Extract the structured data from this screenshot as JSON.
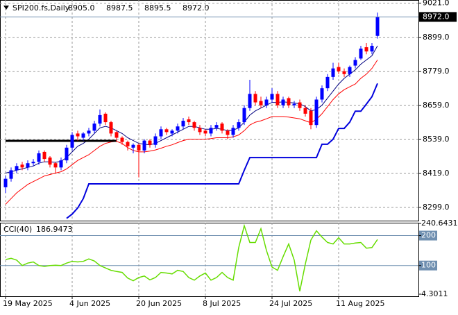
{
  "chart_data": [
    {
      "type": "candlestick",
      "title": "SPI200.fs,Daily",
      "header_values": [
        "8905.0",
        "8987.5",
        "8895.5",
        "8972.0"
      ],
      "categories": [
        "19 May 2025",
        null,
        null,
        null,
        null,
        null,
        null,
        null,
        null,
        null,
        null,
        null,
        "4 Jun 2025",
        null,
        null,
        null,
        null,
        null,
        null,
        null,
        null,
        null,
        null,
        null,
        "20 Jun 2025",
        null,
        null,
        null,
        null,
        null,
        null,
        null,
        null,
        null,
        null,
        null,
        "8 Jul 2025",
        null,
        null,
        null,
        null,
        null,
        null,
        null,
        null,
        null,
        null,
        null,
        "24 Jul 2025",
        null,
        null,
        null,
        null,
        null,
        null,
        null,
        null,
        null,
        null,
        null,
        "11 Aug 2025",
        null,
        null,
        null,
        null,
        null,
        null,
        null
      ],
      "open": [
        8370,
        8400,
        8430,
        8450,
        8440,
        8455,
        8460,
        8495,
        8475,
        8455,
        8440,
        8465,
        8510,
        8560,
        8545,
        8560,
        8570,
        8595,
        8630,
        8600,
        8565,
        8545,
        8530,
        8510,
        8520,
        8500,
        8535,
        8520,
        8550,
        8575,
        8560,
        8570,
        8585,
        8610,
        8600,
        8580,
        8570,
        8560,
        8580,
        8595,
        8570,
        8555,
        8580,
        8600,
        8650,
        8700,
        8675,
        8660,
        8680,
        8700,
        8660,
        8685,
        8660,
        8670,
        8650,
        8640,
        8590,
        8680,
        8720,
        8760,
        8795,
        8780,
        8770,
        8800,
        8825,
        8865,
        8850,
        8905
      ],
      "high": [
        8410,
        8440,
        8455,
        8460,
        8465,
        8470,
        8500,
        8500,
        8480,
        8460,
        8475,
        8520,
        8565,
        8570,
        8565,
        8580,
        8605,
        8645,
        8635,
        8605,
        8570,
        8550,
        8535,
        8525,
        8525,
        8540,
        8540,
        8560,
        8585,
        8580,
        8575,
        8595,
        8615,
        8620,
        8605,
        8590,
        8575,
        8590,
        8600,
        8600,
        8575,
        8590,
        8610,
        8660,
        8750,
        8710,
        8690,
        8690,
        8720,
        8710,
        8690,
        8690,
        8675,
        8680,
        8660,
        8650,
        8690,
        8730,
        8770,
        8810,
        8810,
        8790,
        8800,
        8830,
        8870,
        8880,
        8880,
        8987.5
      ],
      "low": [
        8350,
        8390,
        8420,
        8430,
        8430,
        8445,
        8450,
        8460,
        8440,
        8420,
        8430,
        8455,
        8500,
        8535,
        8535,
        8550,
        8560,
        8585,
        8590,
        8550,
        8530,
        8520,
        8500,
        8490,
        8405,
        8490,
        8510,
        8510,
        8540,
        8555,
        8550,
        8560,
        8575,
        8590,
        8570,
        8555,
        8550,
        8550,
        8570,
        8560,
        8540,
        8545,
        8570,
        8590,
        8640,
        8660,
        8650,
        8650,
        8670,
        8650,
        8650,
        8650,
        8650,
        8640,
        8620,
        8575,
        8580,
        8670,
        8710,
        8750,
        8770,
        8760,
        8760,
        8790,
        8820,
        8840,
        8840,
        8895.5
      ],
      "close": [
        8400,
        8430,
        8445,
        8440,
        8455,
        8460,
        8490,
        8470,
        8450,
        8440,
        8465,
        8510,
        8555,
        8550,
        8560,
        8570,
        8595,
        8625,
        8600,
        8560,
        8545,
        8530,
        8515,
        8520,
        8500,
        8535,
        8520,
        8550,
        8575,
        8565,
        8570,
        8585,
        8605,
        8600,
        8580,
        8565,
        8560,
        8580,
        8590,
        8570,
        8555,
        8580,
        8600,
        8650,
        8700,
        8670,
        8660,
        8680,
        8700,
        8660,
        8680,
        8660,
        8665,
        8650,
        8630,
        8590,
        8680,
        8720,
        8760,
        8790,
        8780,
        8770,
        8795,
        8820,
        8860,
        8850,
        8870,
        8972
      ],
      "up_color": "#0000ff",
      "down_color": "#ff0000",
      "lines": [
        {
          "color": "#000080",
          "width": 1,
          "values": [
            8420,
            8425,
            8430,
            8435,
            8440,
            8445,
            8455,
            8460,
            8460,
            8458,
            8462,
            8475,
            8495,
            8515,
            8525,
            8540,
            8560,
            8580,
            8585,
            8580,
            8570,
            8560,
            8545,
            8535,
            8525,
            8522,
            8520,
            8525,
            8535,
            8545,
            8555,
            8565,
            8575,
            8585,
            8585,
            8580,
            8575,
            8575,
            8578,
            8575,
            8570,
            8572,
            8580,
            8600,
            8625,
            8640,
            8650,
            8660,
            8670,
            8670,
            8672,
            8670,
            8668,
            8665,
            8655,
            8640,
            8645,
            8660,
            8685,
            8710,
            8735,
            8755,
            8770,
            8785,
            8805,
            8820,
            8835,
            8870
          ]
        },
        {
          "color": "#ff0000",
          "width": 1,
          "values": [
            8310,
            8330,
            8350,
            8365,
            8380,
            8390,
            8400,
            8410,
            8415,
            8420,
            8425,
            8435,
            8450,
            8465,
            8475,
            8485,
            8500,
            8515,
            8525,
            8530,
            8532,
            8525,
            8510,
            8500,
            8495,
            8495,
            8498,
            8502,
            8508,
            8515,
            8520,
            8528,
            8535,
            8540,
            8540,
            8540,
            8540,
            8542,
            8545,
            8545,
            8545,
            8548,
            8555,
            8570,
            8590,
            8600,
            8605,
            8612,
            8620,
            8620,
            8620,
            8618,
            8615,
            8612,
            8605,
            8598,
            8610,
            8630,
            8655,
            8680,
            8700,
            8715,
            8725,
            8735,
            8755,
            8770,
            8790,
            8820
          ]
        },
        {
          "color": "#0000dd",
          "width": 2,
          "values": [
            null,
            null,
            null,
            null,
            null,
            null,
            null,
            null,
            null,
            null,
            null,
            8260,
            8275,
            8297,
            8330,
            8382,
            8382,
            8382,
            8382,
            8382,
            8382,
            8382,
            8382,
            8382,
            8382,
            8382,
            8382,
            8382,
            8382,
            8382,
            8382,
            8382,
            8382,
            8382,
            8382,
            8382,
            8382,
            8382,
            8382,
            8382,
            8382,
            8382,
            8382,
            8430,
            8475,
            8475,
            8475,
            8475,
            8475,
            8475,
            8475,
            8475,
            8475,
            8475,
            8475,
            8475,
            8475,
            8522,
            8522,
            8540,
            8578,
            8578,
            8600,
            8639,
            8639,
            8664,
            8690,
            8737
          ]
        },
        {
          "color": "#000000",
          "width": 3,
          "values": [
            8534,
            8534,
            8534,
            8534,
            8534,
            8534,
            8534,
            8534,
            8534,
            8534,
            8534,
            8534,
            8534,
            8534,
            8534,
            8534,
            8534,
            8534,
            8534,
            8534,
            8534,
            null,
            null,
            null,
            null,
            null,
            null,
            null,
            null,
            null,
            null,
            null,
            null,
            null,
            null,
            null,
            null,
            null,
            null,
            null,
            null,
            null,
            null,
            null,
            null,
            null,
            null,
            null,
            null,
            null,
            null,
            null,
            null,
            null,
            null,
            null,
            null,
            null,
            null,
            null,
            null,
            null,
            null,
            null,
            null,
            null,
            null,
            null
          ]
        }
      ],
      "last_label": "8972.0",
      "ylim": [
        8252,
        9027
      ],
      "yticks": [
        {
          "value": 9021,
          "label": "9021.0"
        },
        {
          "value": 8899,
          "label": "8899.0"
        },
        {
          "value": 8779,
          "label": "8779.0"
        },
        {
          "value": 8659,
          "label": "8659.0"
        },
        {
          "value": 8539,
          "label": "8539.0"
        },
        {
          "value": 8419,
          "label": "8419.0"
        },
        {
          "value": 8299,
          "label": "8299.0"
        }
      ],
      "grid": true
    },
    {
      "type": "line",
      "title": "CCI(40)",
      "value_label": "186.9473",
      "color": "#66dd00",
      "values": [
        120,
        124,
        118,
        100,
        108,
        112,
        100,
        97,
        100,
        101,
        100,
        108,
        114,
        112,
        114,
        122,
        115,
        100,
        92,
        84,
        80,
        77,
        58,
        49,
        60,
        65,
        52,
        60,
        77,
        75,
        72,
        84,
        80,
        60,
        51,
        65,
        75,
        51,
        60,
        77,
        60,
        51,
        160,
        233,
        177,
        177,
        223,
        150,
        95,
        84,
        130,
        172,
        118,
        14,
        105,
        185,
        216,
        195,
        177,
        172,
        193,
        172,
        172,
        175,
        177,
        158,
        160,
        186.9473
      ],
      "levels": [
        200,
        100
      ],
      "level_color": "#6f8fb0",
      "ylim": [
        4.3011,
        240.6431
      ],
      "yticks": [
        240.6431,
        200,
        100,
        4.3011
      ]
    }
  ]
}
